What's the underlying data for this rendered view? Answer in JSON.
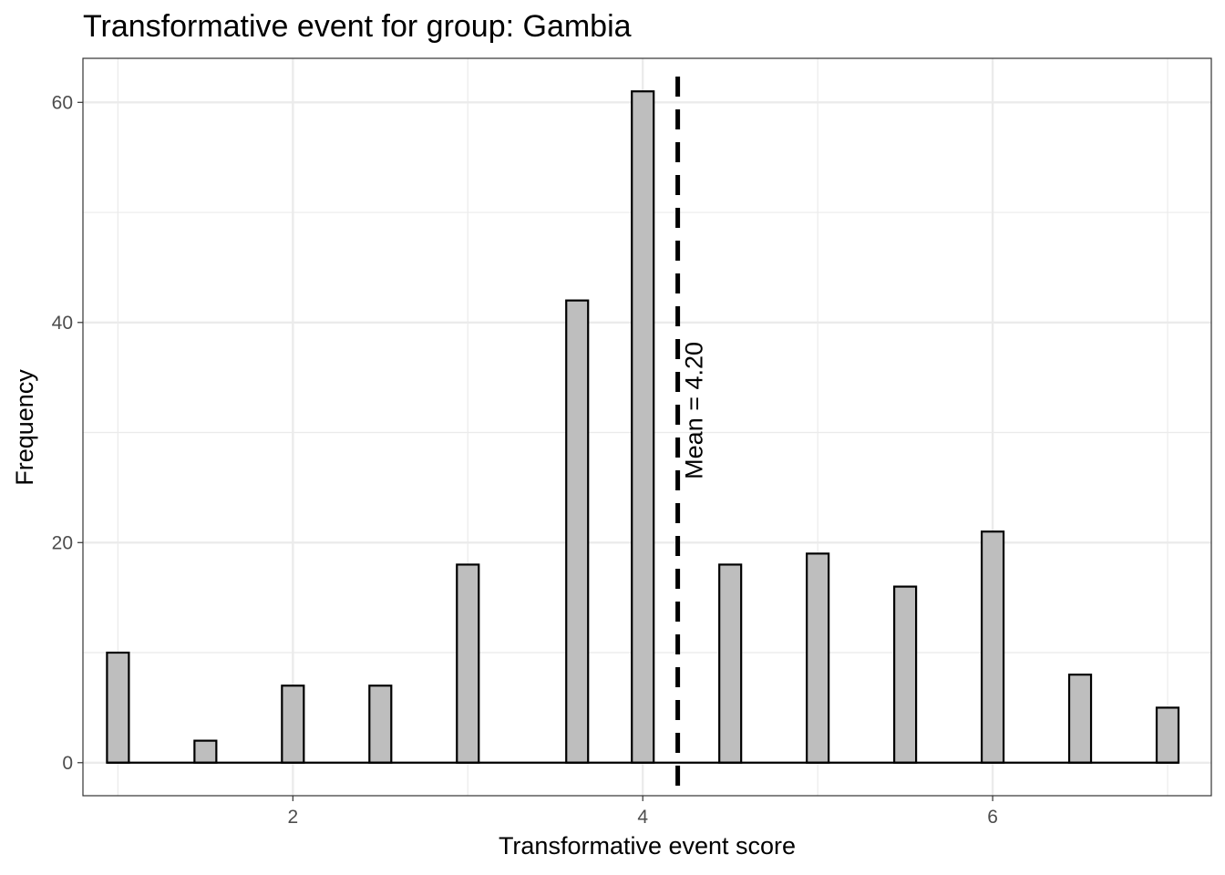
{
  "chart_data": {
    "type": "bar",
    "title": "Transformative event for group: Gambia",
    "xlabel": "Transformative event score",
    "ylabel": "Frequency",
    "x": [
      1.0,
      1.5,
      2.0,
      2.5,
      3.0,
      3.625,
      4.0,
      4.5,
      5.0,
      5.5,
      6.0,
      6.5,
      7.0
    ],
    "values": [
      10,
      2,
      7,
      7,
      18,
      42,
      61,
      18,
      19,
      16,
      21,
      8,
      5
    ],
    "xlim": [
      0.8,
      7.25
    ],
    "ylim": [
      -3,
      64
    ],
    "x_ticks": [
      2,
      4,
      6
    ],
    "x_tick_labels": [
      "2",
      "4",
      "6"
    ],
    "y_ticks": [
      0,
      20,
      40,
      60
    ],
    "y_tick_labels": [
      "0",
      "20",
      "40",
      "60"
    ],
    "grid": true,
    "bar_fill": "#bebebe",
    "bar_stroke": "#000000",
    "mean_line": {
      "x": 4.2,
      "label": "Mean = 4.20"
    }
  }
}
